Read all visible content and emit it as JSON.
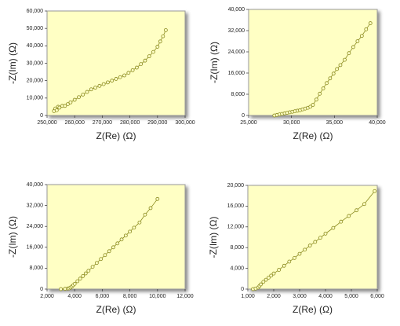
{
  "chart_data": [
    {
      "type": "line",
      "x_label": "Z(Re)  (Ω)",
      "y_label": "-Z(Im)  (Ω)",
      "color": "#8a8a1e",
      "marker": "open-circle",
      "x": [
        252500,
        253000,
        253500,
        254000,
        254500,
        255500,
        256500,
        257500,
        258500,
        260000,
        261500,
        263000,
        264500,
        266000,
        267500,
        269000,
        270500,
        272000,
        273500,
        275000,
        276500,
        278000,
        279500,
        281000,
        282500,
        284000,
        285500,
        287000,
        288500,
        290000,
        291000,
        292000,
        293000
      ],
      "values": [
        2500,
        4000,
        3000,
        5000,
        4500,
        5500,
        5500,
        6500,
        7500,
        9000,
        10500,
        12000,
        13500,
        15000,
        16000,
        17000,
        18000,
        19000,
        20000,
        21000,
        22000,
        23000,
        24500,
        26000,
        27500,
        29500,
        31500,
        34000,
        36500,
        39500,
        42500,
        45500,
        49000
      ],
      "xlim": [
        250000,
        300000
      ],
      "xticks": [
        {
          "value": 250000,
          "label": "250,000"
        },
        {
          "value": 260000,
          "label": "260,000"
        },
        {
          "value": 270000,
          "label": "270,000"
        },
        {
          "value": 280000,
          "label": "280,000"
        },
        {
          "value": 290000,
          "label": "290,000"
        },
        {
          "value": 300000,
          "label": "300,000"
        }
      ],
      "ylim": [
        0,
        60000
      ],
      "yticks": [
        0,
        {
          "value": 10000,
          "label": "10,000"
        },
        {
          "value": 20000,
          "label": "20,000"
        },
        {
          "value": 30000,
          "label": "30,000"
        },
        {
          "value": 40000,
          "label": "40,000"
        },
        {
          "value": 50000,
          "label": "50,000"
        },
        {
          "value": 60000,
          "label": "60,000"
        }
      ]
    },
    {
      "type": "line",
      "x_label": "Z(Re)  (Ω)",
      "y_label": "-Z(Im)  (Ω)",
      "color": "#8a8a1e",
      "marker": "open-circle",
      "x": [
        28000,
        28300,
        28600,
        28900,
        29200,
        29500,
        29800,
        30100,
        30400,
        30700,
        31000,
        31300,
        31600,
        31900,
        32200,
        32500,
        32900,
        33300,
        33700,
        34100,
        34500,
        34900,
        35300,
        35700,
        36200,
        36700,
        37200,
        37700,
        38200,
        38700,
        39200
      ],
      "values": [
        0,
        200,
        400,
        600,
        800,
        1000,
        1200,
        1400,
        1600,
        1800,
        2000,
        2300,
        2600,
        2900,
        3300,
        4000,
        6000,
        8200,
        10200,
        12200,
        14000,
        15800,
        17500,
        19000,
        21000,
        23500,
        25800,
        28000,
        30000,
        32500,
        34800
      ],
      "xlim": [
        25000,
        40000
      ],
      "xticks": [
        {
          "value": 25000,
          "label": "25,000"
        },
        {
          "value": 30000,
          "label": "30,000"
        },
        {
          "value": 35000,
          "label": "35,000"
        },
        {
          "value": 40000,
          "label": "40,000"
        }
      ],
      "ylim": [
        0,
        40000
      ],
      "yticks": [
        0,
        {
          "value": 8000,
          "label": "8,000"
        },
        {
          "value": 16000,
          "label": "16,000"
        },
        {
          "value": 24000,
          "label": "24,000"
        },
        {
          "value": 32000,
          "label": "32,000"
        },
        {
          "value": 40000,
          "label": "40,000"
        }
      ]
    },
    {
      "type": "line",
      "x_label": "Z(Re)  (Ω)",
      "y_label": "-Z(Im)  (Ω)",
      "color": "#8a8a1e",
      "marker": "open-circle",
      "x": [
        3000,
        3300,
        3500,
        3600,
        3700,
        3800,
        3900,
        4000,
        4200,
        4400,
        4600,
        4800,
        5000,
        5300,
        5600,
        5900,
        6200,
        6500,
        6800,
        7100,
        7400,
        7700,
        8000,
        8300,
        8700,
        9100,
        9500,
        10000
      ],
      "values": [
        0,
        100,
        200,
        300,
        600,
        1000,
        1500,
        2000,
        3000,
        4000,
        5000,
        6000,
        7000,
        8500,
        10000,
        11500,
        13000,
        14500,
        16000,
        17500,
        19000,
        20500,
        22000,
        23500,
        25500,
        28500,
        31000,
        34500
      ],
      "xlim": [
        2000,
        12000
      ],
      "xticks": [
        {
          "value": 2000,
          "label": "2,000"
        },
        {
          "value": 4000,
          "label": "4,000"
        },
        {
          "value": 6000,
          "label": "6,000"
        },
        {
          "value": 8000,
          "label": "8,000"
        },
        {
          "value": 10000,
          "label": "10,000"
        },
        {
          "value": 12000,
          "label": "12,000"
        }
      ],
      "ylim": [
        0,
        40000
      ],
      "yticks": [
        0,
        {
          "value": 8000,
          "label": "8,000"
        },
        {
          "value": 16000,
          "label": "16,000"
        },
        {
          "value": 24000,
          "label": "24,000"
        },
        {
          "value": 32000,
          "label": "32,000"
        },
        {
          "value": 40000,
          "label": "40,000"
        }
      ]
    },
    {
      "type": "line",
      "x_label": "Z(Re)  (Ω)",
      "y_label": "-Z(Im)  (Ω)",
      "color": "#8a8a1e",
      "marker": "open-circle",
      "x": [
        1200,
        1300,
        1400,
        1450,
        1500,
        1600,
        1700,
        1800,
        1900,
        2000,
        2200,
        2400,
        2600,
        2800,
        3000,
        3200,
        3400,
        3600,
        3800,
        4000,
        4300,
        4600,
        4900,
        5200,
        5500,
        5900
      ],
      "values": [
        0,
        100,
        300,
        600,
        900,
        1400,
        1800,
        2200,
        2600,
        3000,
        3700,
        4500,
        5300,
        6000,
        6800,
        7600,
        8400,
        9100,
        9900,
        10700,
        11800,
        13000,
        14100,
        15200,
        16400,
        18900
      ],
      "xlim": [
        1000,
        6000
      ],
      "xticks": [
        {
          "value": 1000,
          "label": "1,000"
        },
        {
          "value": 2000,
          "label": "2,000"
        },
        {
          "value": 3000,
          "label": "3,000"
        },
        {
          "value": 4000,
          "label": "4,000"
        },
        {
          "value": 5000,
          "label": "5,000"
        },
        {
          "value": 6000,
          "label": "6,000"
        }
      ],
      "ylim": [
        0,
        20000
      ],
      "yticks": [
        0,
        {
          "value": 4000,
          "label": "4,000"
        },
        {
          "value": 8000,
          "label": "8,000"
        },
        {
          "value": 12000,
          "label": "12,000"
        },
        {
          "value": 16000,
          "label": "16,000"
        },
        {
          "value": 20000,
          "label": "20,000"
        }
      ]
    }
  ]
}
